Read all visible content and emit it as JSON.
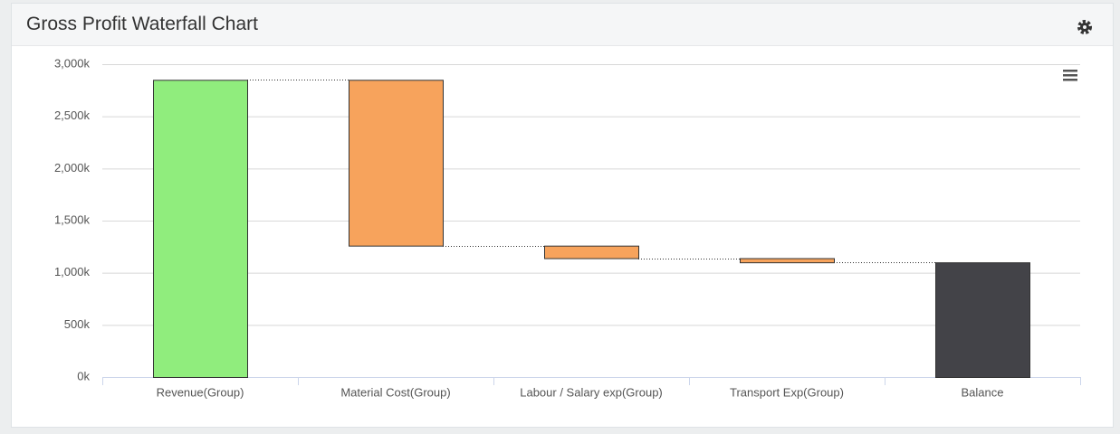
{
  "chart_data": {
    "type": "waterfall",
    "title": "Gross Profit Waterfall Chart",
    "categories": [
      "Revenue(Group)",
      "Material Cost(Group)",
      "Labour / Salary exp(Group)",
      "Transport Exp(Group)",
      "Balance"
    ],
    "values": [
      2850,
      -1590,
      -120,
      -40,
      1100
    ],
    "colors": [
      "#90ed7d",
      "#f7a35c",
      "#f7a35c",
      "#f7a35c",
      "#434348"
    ],
    "last_is_total": true,
    "ylim": [
      0,
      3000
    ],
    "yticks": [
      {
        "value": 0,
        "label": "0k"
      },
      {
        "value": 500,
        "label": "500k"
      },
      {
        "value": 1000,
        "label": "1,000k"
      },
      {
        "value": 1500,
        "label": "1,500k"
      },
      {
        "value": 2000,
        "label": "2,000k"
      },
      {
        "value": 2500,
        "label": "2,500k"
      },
      {
        "value": 3000,
        "label": "3,000k"
      }
    ],
    "grid": true
  }
}
